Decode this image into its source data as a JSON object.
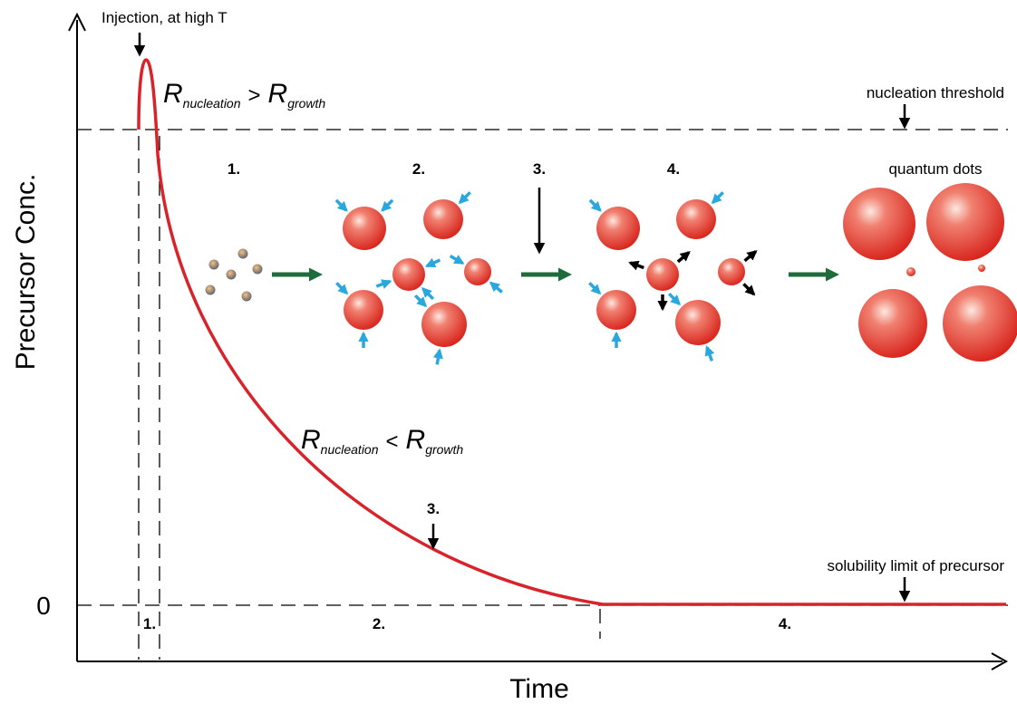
{
  "axes": {
    "y_label": "Precursor Conc.",
    "x_label": "Time",
    "y_zero": "0"
  },
  "annotations": {
    "injection": "Injection, at high T",
    "nucleation_threshold": "nucleation threshold",
    "solubility_limit": "solubility limit of precursor",
    "quantum_dots": "quantum dots",
    "curve_step": "3."
  },
  "rate_relations": [
    {
      "left": {
        "symbol": "R",
        "sub": "nucleation"
      },
      "op": ">",
      "right": {
        "symbol": "R",
        "sub": "growth"
      }
    },
    {
      "left": {
        "symbol": "R",
        "sub": "nucleation"
      },
      "op": "<",
      "right": {
        "symbol": "R",
        "sub": "growth"
      }
    }
  ],
  "stages_top": [
    "1.",
    "2.",
    "3.",
    "4."
  ],
  "stages_bottom": [
    "1.",
    "2.",
    "4."
  ]
}
